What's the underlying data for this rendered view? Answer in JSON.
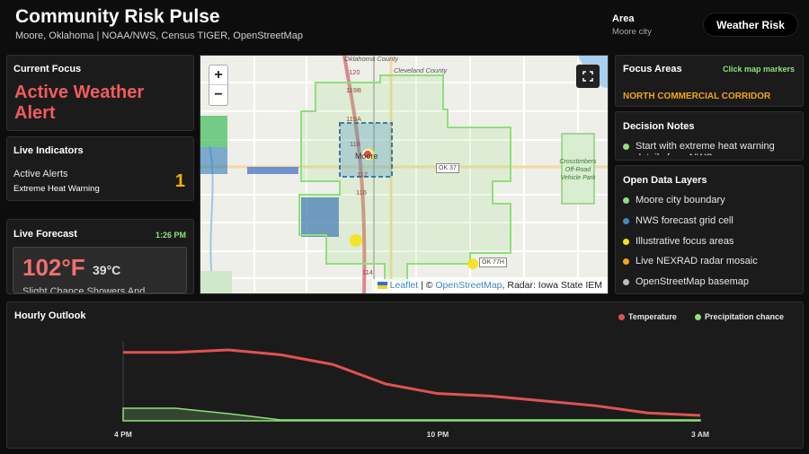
{
  "header": {
    "title": "Community Risk Pulse",
    "subtitle": "Moore, Oklahoma | NOAA/NWS, Census TIGER, OpenStreetMap",
    "area_label": "Area",
    "area_value": "Moore city",
    "mode_button": "Weather Risk"
  },
  "current_focus": {
    "heading": "Current Focus",
    "value": "Active Weather Alert"
  },
  "live_indicators": {
    "heading": "Live Indicators",
    "label": "Active Alerts",
    "detail": "Extreme Heat Warning",
    "count": "1"
  },
  "live_forecast": {
    "heading": "Live Forecast",
    "time": "1:26 PM",
    "temp_f": "102°F",
    "temp_c": "39°C",
    "description": "Slight Chance Showers And"
  },
  "map": {
    "zoom_in": "+",
    "zoom_out": "−",
    "fullscreen_icon": "fullscreen-icon",
    "attribution_leaflet": "Leaflet",
    "attribution_sep": " | © ",
    "attribution_osm": "OpenStreetMap",
    "attribution_radar": ", Radar: Iowa State IEM",
    "labels": {
      "oklahoma_county": "Oklahoma County",
      "cleveland_county": "Cleveland County",
      "moore": "Moore",
      "park": "Crosstimbers Off-Road Vehicle Park",
      "ok37": "OK 37",
      "ok77h": "OK 77H",
      "i120": "120",
      "i119b": "119B",
      "i119a": "119A",
      "i118": "118",
      "i117": "117",
      "i116": "116",
      "i114": "114"
    }
  },
  "focus_areas": {
    "heading": "Focus Areas",
    "link": "Click map markers",
    "item": "NORTH COMMERCIAL CORRIDOR"
  },
  "decision_notes": {
    "heading": "Decision Notes",
    "note": "Start with extreme heat warning details from NWS"
  },
  "data_layers": {
    "heading": "Open Data Layers",
    "items": [
      {
        "label": "Moore city boundary",
        "color": "#8ee07a"
      },
      {
        "label": "NWS forecast grid cell",
        "color": "#3b8cc4"
      },
      {
        "label": "Illustrative focus areas",
        "color": "#f5e21a"
      },
      {
        "label": "Live NEXRAD radar mosaic",
        "color": "#f4a417"
      },
      {
        "label": "OpenStreetMap basemap",
        "color": "#bdbdbd"
      }
    ]
  },
  "hourly": {
    "heading": "Hourly Outlook",
    "legend_temp": "Temperature",
    "legend_precip": "Precipitation chance",
    "temp_color": "#e05252",
    "precip_color": "#8ee07a"
  },
  "chart_data": {
    "type": "line",
    "title": "Hourly Outlook",
    "x": [
      "4 PM",
      "5 PM",
      "6 PM",
      "7 PM",
      "8 PM",
      "9 PM",
      "10 PM",
      "11 PM",
      "12 AM",
      "1 AM",
      "2 AM",
      "3 AM"
    ],
    "x_tick_labels": [
      "4 PM",
      "10 PM",
      "3 AM"
    ],
    "series": [
      {
        "name": "Temperature",
        "values": [
          102,
          102,
          103,
          101,
          97,
          89,
          85,
          84,
          82,
          80,
          77,
          76
        ],
        "unit": "°F"
      },
      {
        "name": "Precipitation chance",
        "values": [
          14,
          14,
          8,
          1,
          1,
          1,
          1,
          1,
          1,
          1,
          1,
          1
        ],
        "unit": "%",
        "style": "area"
      }
    ],
    "grid": false,
    "legend": "top-right"
  }
}
